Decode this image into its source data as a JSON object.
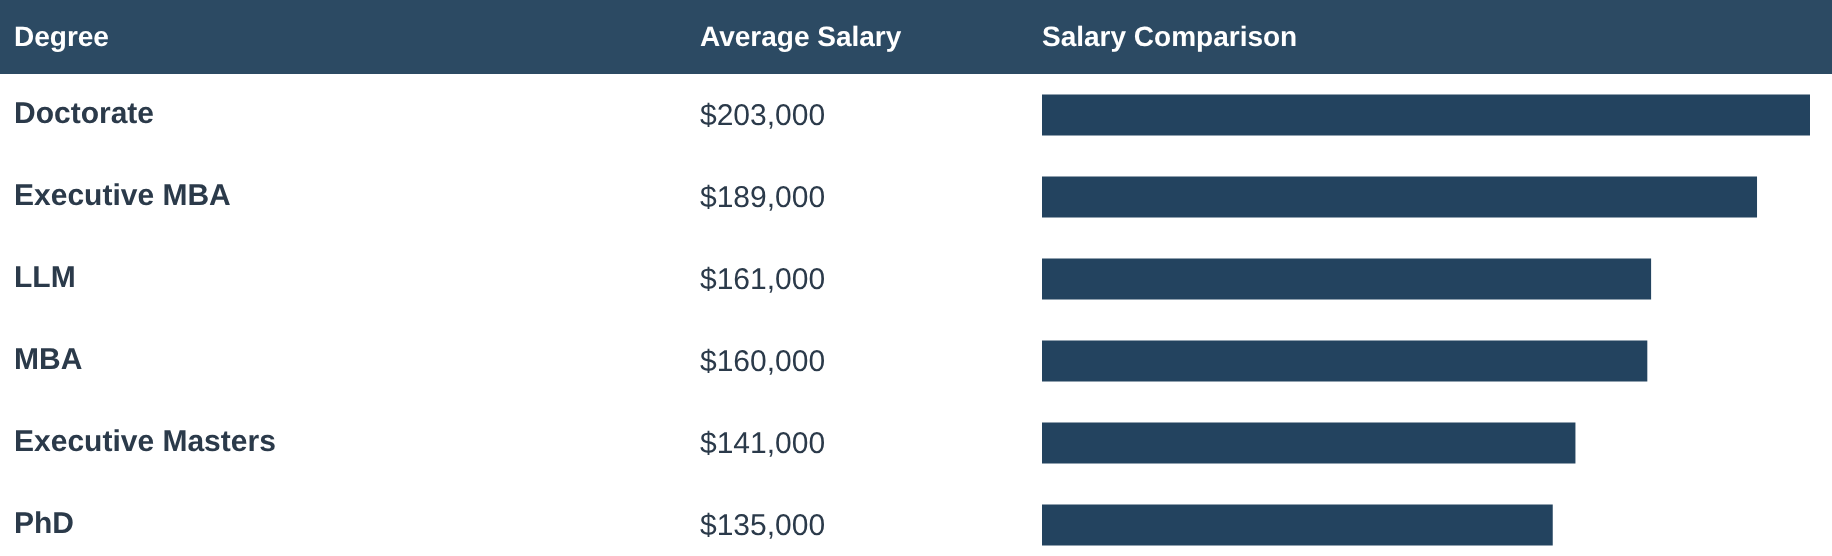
{
  "chart_data": {
    "type": "bar",
    "orientation": "horizontal",
    "ylabel": "Degree",
    "xlabel": "Salary Comparison",
    "annotations": [
      "Average Salary"
    ],
    "categories": [
      "Doctorate",
      "Executive MBA",
      "LLM",
      "MBA",
      "Executive Masters",
      "PhD"
    ],
    "values": [
      203000,
      189000,
      161000,
      160000,
      141000,
      135000
    ],
    "value_labels": [
      "$203,000",
      "$189,000",
      "$161,000",
      "$160,000",
      "$141,000",
      "$135,000"
    ],
    "color": "#23435f"
  }
}
